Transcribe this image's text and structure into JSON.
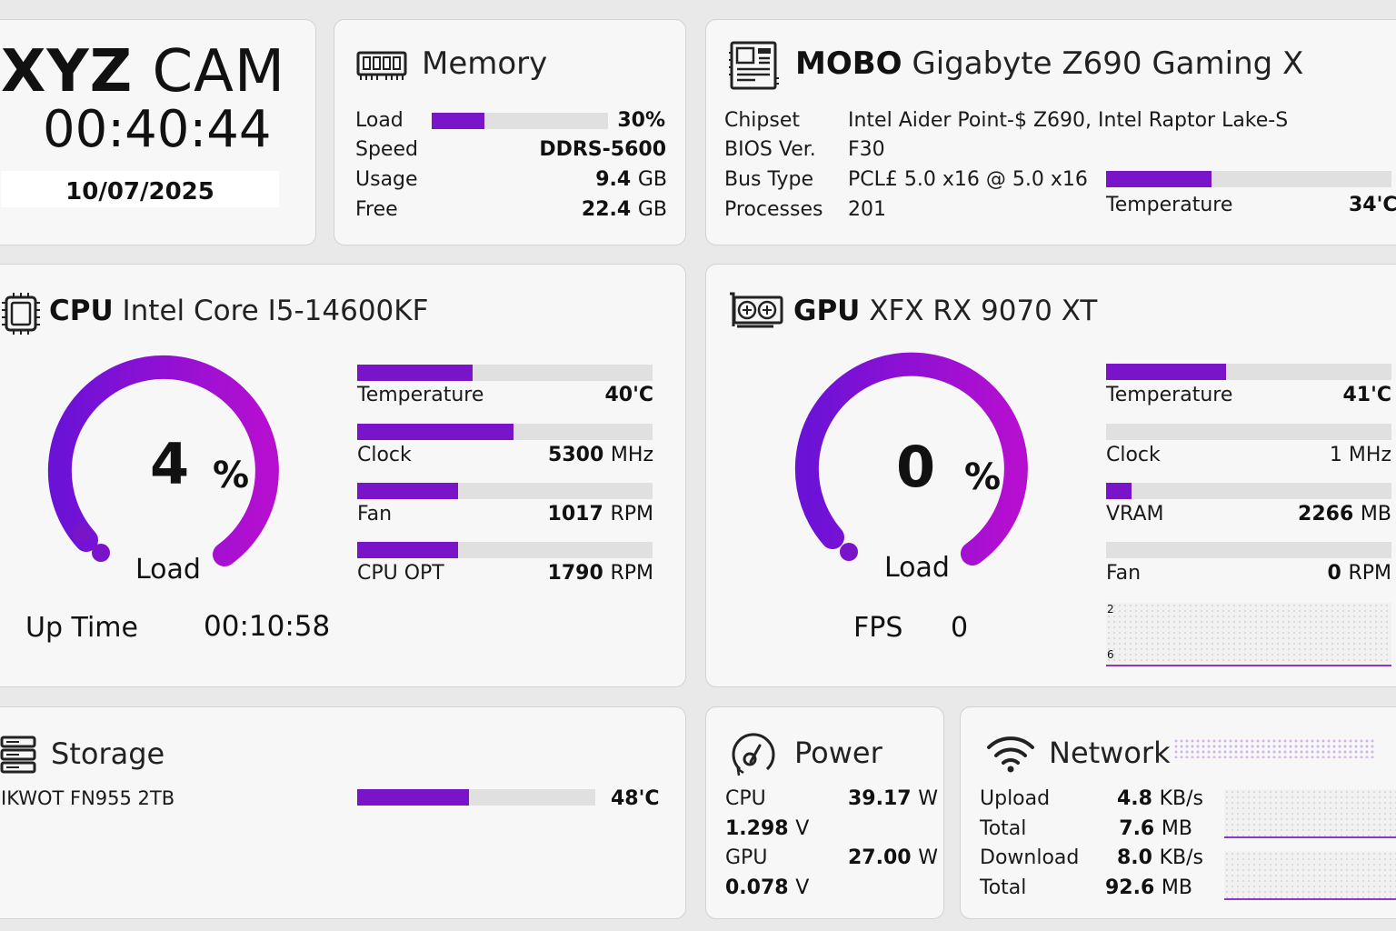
{
  "brand": {
    "name_bold": "XYZ",
    "name_rest": "CAM",
    "time": "00:40:44",
    "date": "10/07/2025"
  },
  "memory": {
    "title": "Memory",
    "load_label": "Load",
    "load_value": "30%",
    "load_fraction": 0.3,
    "speed_label": "Speed",
    "speed_value": "DDRS-5600",
    "usage_label": "Usage",
    "usage_value": "9.4",
    "usage_unit": "GB",
    "free_label": "Free",
    "free_value": "22.4",
    "free_unit": "GB"
  },
  "mobo": {
    "title_bold": "MOBO",
    "title_rest": "Gigabyte Z690 Gaming X",
    "rows": [
      {
        "label": "Chipset",
        "value": "Intel Aider Point-$ Z690, Intel Raptor Lake-S"
      },
      {
        "label": "BIOS Ver.",
        "value": "F30"
      },
      {
        "label": "Bus Type",
        "value": "PCL£ 5.0 x16 @ 5.0 x16"
      },
      {
        "label": "Processes",
        "value": "201"
      }
    ],
    "temp_label": "Temperature",
    "temp_value": "34'C",
    "temp_fraction": 0.37
  },
  "cpu": {
    "title_bold": "CPU",
    "title_rest": "Intel Core I5-14600KF",
    "load_value": "4",
    "load_fraction": 0.04,
    "percent_sign": "%",
    "load_label": "Load",
    "uptime_label": "Up Time",
    "uptime_value": "00:10:58",
    "metrics": [
      {
        "label": "Temperature",
        "value": "40'C",
        "unit": "",
        "fraction": 0.39
      },
      {
        "label": "Clock",
        "value": "5300",
        "unit": "MHz",
        "fraction": 0.53
      },
      {
        "label": "Fan",
        "value": "1017",
        "unit": "RPM",
        "fraction": 0.34
      },
      {
        "label": "CPU OPT",
        "value": "1790",
        "unit": "RPM",
        "fraction": 0.34
      }
    ]
  },
  "gpu": {
    "title_bold": "GPU",
    "title_rest": "XFX RX 9070 XT",
    "load_value": "0",
    "load_fraction": 0.0,
    "percent_sign": "%",
    "load_label": "Load",
    "fps_label": "FPS",
    "fps_value": "0",
    "metrics": [
      {
        "label": "Temperature",
        "value": "41'C",
        "unit": "",
        "fraction": 0.42
      },
      {
        "label": "Clock",
        "value": "1",
        "unit": "MHz",
        "fraction": 0.0
      },
      {
        "label": "VRAM",
        "value": "2266",
        "unit": "MB",
        "fraction": 0.09
      },
      {
        "label": "Fan",
        "value": "0",
        "unit": "RPM",
        "fraction": 0.0
      }
    ],
    "graph_top_label": "2",
    "graph_bottom_label": "6"
  },
  "storage": {
    "title": "Storage",
    "device": "IKWOT FN955 2TB",
    "temp_value": "48'C",
    "temp_fraction": 0.47
  },
  "power": {
    "title": "Power",
    "cpu_label": "CPU",
    "cpu_watts": "39.17",
    "cpu_volts": "1.298",
    "gpu_label": "GPU",
    "gpu_watts": "27.00",
    "gpu_volts": "0.078",
    "watt_unit": "W",
    "volt_unit": "V"
  },
  "network": {
    "title": "Network",
    "upload_label": "Upload",
    "upload_value": "4.8",
    "upload_unit": "KB/s",
    "total1_label": "Total",
    "total1_value": "7.6",
    "total1_unit": "MB",
    "download_label": "Download",
    "download_value": "8.0",
    "download_unit": "KB/s",
    "total2_label": "Total",
    "total2_value": "92.6",
    "total2_unit": "MB"
  },
  "colors": {
    "accent": "#7a14c8",
    "gauge_start": "#6b12d6",
    "gauge_end": "#b60fd0",
    "track": "#e0e0e0"
  }
}
